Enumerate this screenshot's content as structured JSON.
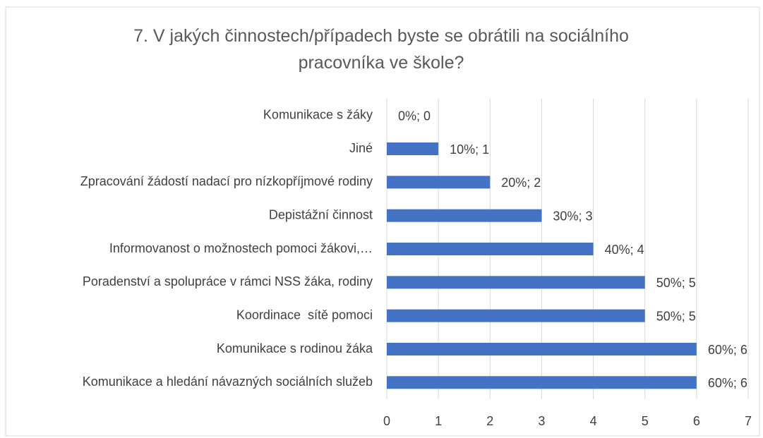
{
  "chart_data": {
    "type": "hbar",
    "title": "7. V jakých činnostech/případech byste se obrátili na sociálního pracovníka ve škole?",
    "categories": [
      "Komunikace s žáky",
      "Jiné",
      "Zpracování žádostí nadací pro nízkopříjmové rodiny",
      "Depistážní činnost",
      "Informovanost o možnostech pomoci žákovi,…",
      "Poradenství a spolupráce v rámci NSS žáka, rodiny",
      "Koordinace  sítě pomoci",
      "Komunikace s rodinou žáka",
      "Komunikace a hledání návazných sociálních služeb"
    ],
    "values": [
      0,
      1,
      2,
      3,
      4,
      5,
      5,
      6,
      6
    ],
    "value_labels": [
      "0%; 0",
      "10%; 1",
      "20%; 2",
      "30%; 3",
      "40%; 4",
      "50%; 5",
      "50%; 5",
      "60%; 6",
      "60%; 6"
    ],
    "color": "#4472c4",
    "xlim": [
      0,
      7
    ],
    "xticks": [
      0,
      1,
      2,
      3,
      4,
      5,
      6,
      7
    ],
    "grid": true
  }
}
